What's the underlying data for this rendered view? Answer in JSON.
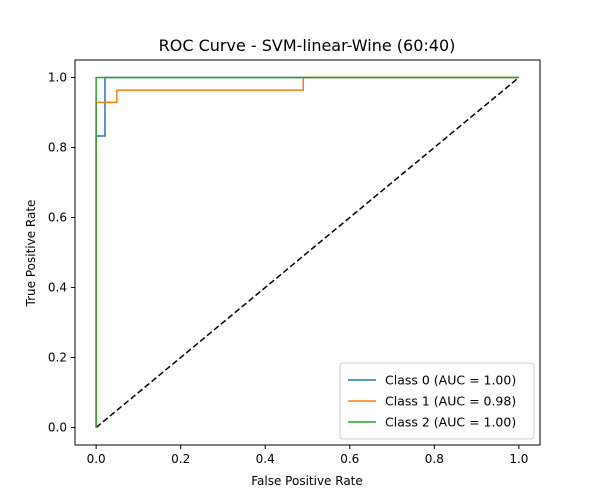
{
  "chart_data": {
    "type": "line",
    "title": "ROC Curve - SVM-linear-Wine (60:40)",
    "xlabel": "False Positive Rate",
    "ylabel": "True Positive Rate",
    "xlim": [
      -0.05,
      1.05
    ],
    "ylim": [
      -0.05,
      1.05
    ],
    "xticks": [
      "0.0",
      "0.2",
      "0.4",
      "0.6",
      "0.8",
      "1.0"
    ],
    "yticks": [
      "0.0",
      "0.2",
      "0.4",
      "0.6",
      "0.8",
      "1.0"
    ],
    "grid": false,
    "legend_position": "lower-right",
    "series": [
      {
        "name": "Class 0 (AUC = 1.00)",
        "color": "#1f77b4",
        "x": [
          0.0,
          0.0,
          0.0,
          0.021,
          0.021,
          1.0
        ],
        "y": [
          0.0,
          0.833,
          0.833,
          0.833,
          1.0,
          1.0
        ]
      },
      {
        "name": "Class 1 (AUC = 0.98)",
        "color": "#ff7f0e",
        "x": [
          0.0,
          0.0,
          0.0,
          0.049,
          0.049,
          0.49,
          0.49,
          1.0
        ],
        "y": [
          0.0,
          0.929,
          0.929,
          0.929,
          0.964,
          0.964,
          1.0,
          1.0
        ]
      },
      {
        "name": "Class 2 (AUC = 1.00)",
        "color": "#2ca02c",
        "x": [
          0.0,
          0.0,
          0.0,
          1.0
        ],
        "y": [
          0.0,
          1.0,
          1.0,
          1.0
        ]
      }
    ],
    "reference_line": {
      "color": "#000000",
      "style": "dashed",
      "x": [
        0.0,
        1.0
      ],
      "y": [
        0.0,
        1.0
      ]
    }
  }
}
